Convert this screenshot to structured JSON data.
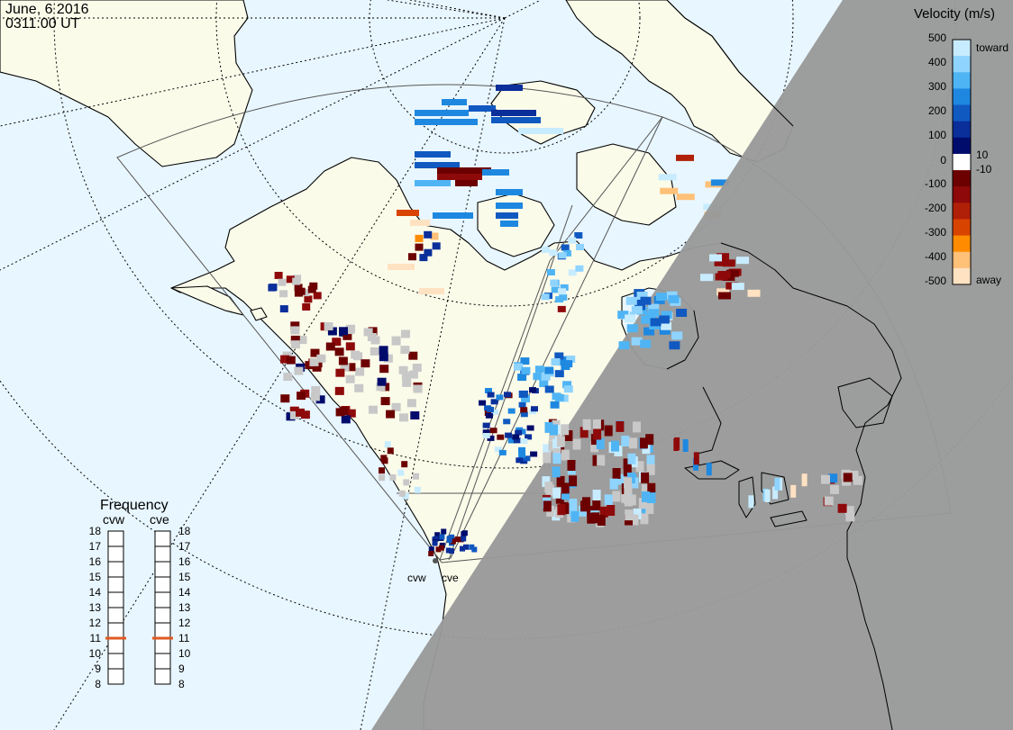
{
  "header": {
    "date": "June, 6 2016",
    "time": "0311:00 UT"
  },
  "colors": {
    "ocean": "#e8f6ff",
    "land": "#fbfbea",
    "night": "#999999",
    "gray_scatter": "#c8c8c8",
    "coast": "#000000",
    "fov_line": "#555555",
    "grid_line": "#000000",
    "freq_marker": "#e05a20"
  },
  "map_labels": {
    "radar_west": "cvw",
    "radar_east": "cve"
  },
  "velocity_scale": {
    "title": "Velocity (m/s)",
    "top_label": "toward",
    "bottom_label": "away",
    "ticks": [
      "500",
      "400",
      "300",
      "200",
      "100",
      "10",
      "0",
      "-10",
      "-100",
      "-200",
      "-300",
      "-400",
      "-500"
    ],
    "stops": [
      "#c8ecff",
      "#8fd4ff",
      "#4fb4f4",
      "#1e88e0",
      "#1059c0",
      "#0a2e9a",
      "#000c6c",
      "#ffffff",
      "#6c0000",
      "#8e0a0a",
      "#b02008",
      "#d84400",
      "#ff8c00",
      "#ffc078",
      "#ffe2c2"
    ]
  },
  "frequency": {
    "title": "Frequency",
    "radars": [
      {
        "name": "cvw",
        "value_mhz": 11
      },
      {
        "name": "cve",
        "value_mhz": 11
      }
    ],
    "ticks": [
      "18",
      "17",
      "16",
      "15",
      "14",
      "13",
      "12",
      "11",
      "10",
      "9",
      "8"
    ],
    "min": 8,
    "max": 18
  }
}
